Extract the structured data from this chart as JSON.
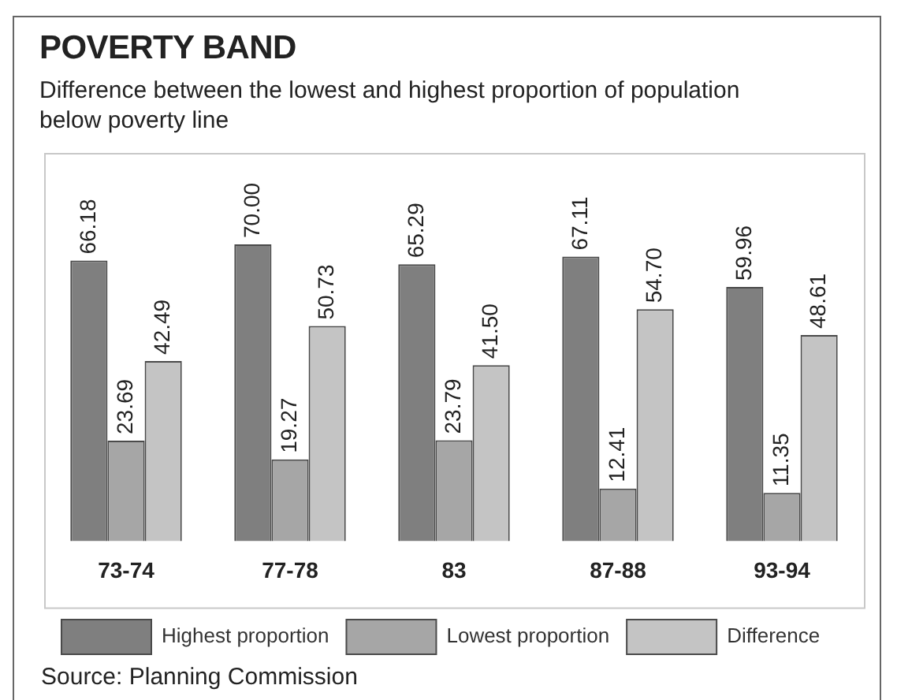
{
  "chart_data": {
    "type": "bar",
    "title": "POVERTY BAND",
    "subtitle": "Difference between the lowest and highest proportion of population below poverty line",
    "categories": [
      "73-74",
      "77-78",
      "83",
      "87-88",
      "93-94"
    ],
    "series": [
      {
        "name": "Highest proportion",
        "color": "#7f7f7f",
        "values": [
          66.18,
          70.0,
          65.29,
          67.11,
          59.96
        ],
        "value_labels": [
          "66.18",
          "70.00",
          "65.29",
          "67.11",
          "59.96"
        ]
      },
      {
        "name": "Lowest proportion",
        "color": "#a6a6a6",
        "values": [
          23.69,
          19.27,
          23.79,
          12.41,
          11.35
        ],
        "value_labels": [
          "23.69",
          "19.27",
          "23.79",
          "12.41",
          "11.35"
        ]
      },
      {
        "name": "Difference",
        "color": "#c4c4c4",
        "values": [
          42.49,
          50.73,
          41.5,
          54.7,
          48.61
        ],
        "value_labels": [
          "42.49",
          "50.73",
          "41.50",
          "54.70",
          "48.61"
        ]
      }
    ],
    "grid": false,
    "legend": "bottom",
    "tick_labels": "x",
    "annotations": [
      "Source: Planning Commission"
    ]
  }
}
